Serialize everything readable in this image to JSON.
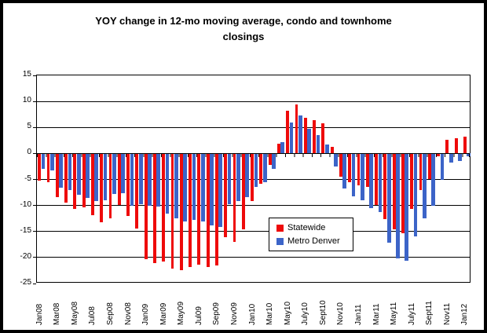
{
  "window": {
    "background_color": "#FFFFFF",
    "frame_color": "#000000"
  },
  "chart_data": {
    "type": "bar",
    "title": "YOY change in 12-mo moving average, condo and townhome closings",
    "xlabel": "",
    "ylabel": "",
    "y_min": -25,
    "y_max": 15,
    "y_ticks": [
      15,
      10,
      5,
      0,
      -5,
      -10,
      -15,
      -20,
      -25
    ],
    "grid": "horizontal",
    "n_categories": 49,
    "x_tick_interval": 2,
    "x_tick_labels": [
      "Jan08",
      "Mar08",
      "May08",
      "Jul08",
      "Sep08",
      "Nov08",
      "Jan09",
      "Mar09",
      "May09",
      "Jul09",
      "Sep09",
      "Nov09",
      "Jan10",
      "Mar10",
      "May10",
      "July10",
      "Sept10",
      "Nov10",
      "Jan11",
      "Mar11",
      "May11",
      "July11",
      "Sept11",
      "Nov11",
      "Jan12"
    ],
    "legend_position": "inside-center-right",
    "series": [
      {
        "name": "Statewide",
        "color": "#EE0A0A",
        "values": [
          -5.2,
          -5.6,
          -8.4,
          -9.4,
          -10.7,
          -10.4,
          -11.8,
          -13.3,
          -12.5,
          -9.9,
          -12.0,
          -14.4,
          -20.3,
          -21.1,
          -20.8,
          -22.1,
          -22.4,
          -21.9,
          -21.4,
          -21.9,
          -21.6,
          -16.1,
          -17.0,
          -14.6,
          -9.1,
          -5.9,
          -2.2,
          1.9,
          8.2,
          9.4,
          6.8,
          6.4,
          5.8,
          1.3,
          -4.4,
          -5.6,
          -6.2,
          -6.5,
          -9.9,
          -12.6,
          -14.6,
          -15.3,
          -10.6,
          -7.0,
          -4.9,
          -0.6,
          2.6,
          2.9,
          3.3
        ]
      },
      {
        "name": "Metro Denver",
        "color": "#3C64C8",
        "values": [
          -3.0,
          -3.2,
          -6.6,
          -7.1,
          -7.9,
          -8.6,
          -9.1,
          -9.0,
          -7.8,
          -7.6,
          -10.1,
          -9.8,
          -10.1,
          -10.2,
          -11.6,
          -12.5,
          -13.1,
          -12.7,
          -13.0,
          -13.9,
          -14.1,
          -9.7,
          -9.1,
          -8.4,
          -6.5,
          -5.5,
          -2.9,
          2.1,
          6.0,
          7.3,
          4.8,
          3.6,
          1.7,
          -2.5,
          -6.8,
          -8.2,
          -9.0,
          -10.5,
          -11.2,
          -17.2,
          -20.2,
          -20.6,
          -16.0,
          -12.5,
          -10.1,
          -5.0,
          -1.8,
          -1.5,
          -0.5
        ]
      }
    ]
  }
}
